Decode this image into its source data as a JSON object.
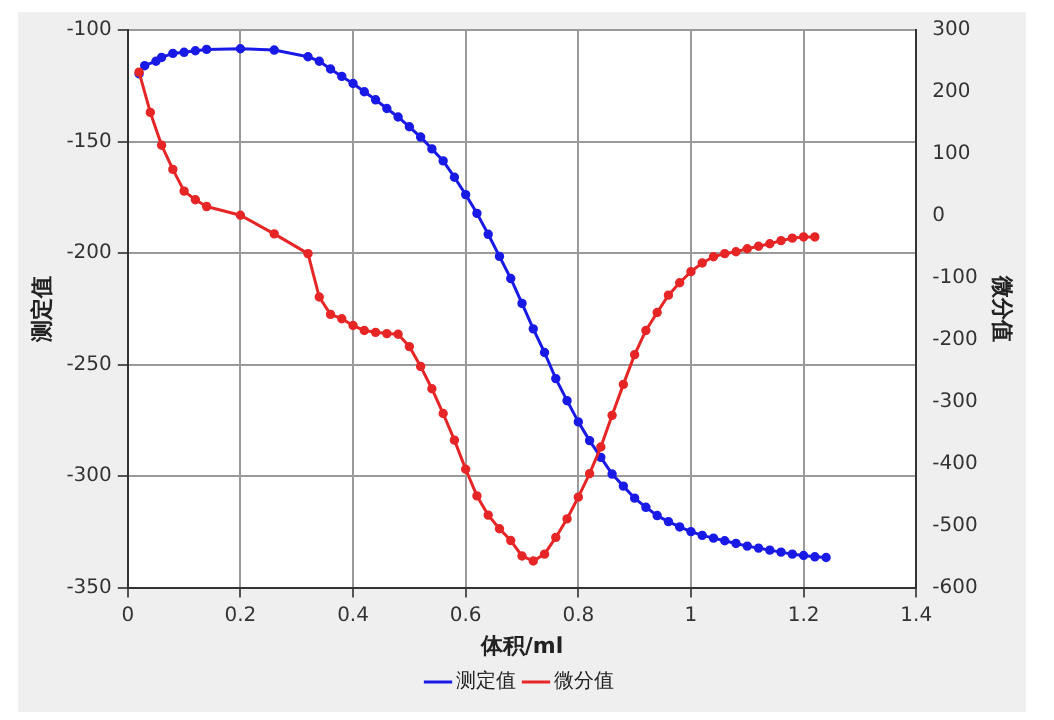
{
  "chart_data": {
    "type": "line",
    "xlabel": "体积/ml",
    "ylabel": "测定值",
    "y2label": "微分值",
    "xlim": [
      0,
      1.4
    ],
    "xticks": [
      0,
      0.2,
      0.4,
      0.6,
      0.8,
      1,
      1.2,
      1.4
    ],
    "ylim": [
      -350,
      -100
    ],
    "yticks": [
      -350,
      -300,
      -250,
      -200,
      -150,
      -100
    ],
    "y2lim": [
      -600,
      300
    ],
    "y2ticks": [
      -600,
      -500,
      -400,
      -300,
      -200,
      -100,
      0,
      100,
      200,
      300
    ],
    "grid": true,
    "legend": "bottom",
    "marker": "circle",
    "line_style": "solid",
    "series": [
      {
        "name": "测定值",
        "color": "#1a1ae6",
        "x": [
          0.02,
          0.03,
          0.05,
          0.06,
          0.08,
          0.1,
          0.12,
          0.14,
          0.2,
          0.26,
          0.32,
          0.34,
          0.36,
          0.38,
          0.4,
          0.42,
          0.44,
          0.46,
          0.48,
          0.5,
          0.52,
          0.54,
          0.56,
          0.58,
          0.6,
          0.62,
          0.64,
          0.66,
          0.68,
          0.7,
          0.72,
          0.74,
          0.76,
          0.78,
          0.8,
          0.82,
          0.84,
          0.86,
          0.88,
          0.9,
          0.92,
          0.94,
          0.96,
          0.98,
          1,
          1.02,
          1.04,
          1.06,
          1.08,
          1.1,
          1.12,
          1.14,
          1.16,
          1.18,
          1.2,
          1.22,
          1.24
        ],
        "values": [
          -119.6,
          -116,
          -114,
          -112.3,
          -110.5,
          -110,
          -109.3,
          -108.7,
          -108.4,
          -109,
          -112,
          -114,
          -117.5,
          -120.8,
          -124,
          -127.7,
          -131.3,
          -135.2,
          -139,
          -143.4,
          -148,
          -153.3,
          -158.7,
          -166,
          -173.8,
          -182.2,
          -191.6,
          -201.5,
          -211.4,
          -222.6,
          -234,
          -244.6,
          -256.3,
          -266.2,
          -275.7,
          -284.1,
          -291.6,
          -299.1,
          -304.5,
          -309.9,
          -314,
          -317.7,
          -320.4,
          -322.8,
          -324.9,
          -326.6,
          -327.8,
          -329,
          -330.2,
          -331.4,
          -332.3,
          -333.2,
          -334.1,
          -335,
          -335.6,
          -336.2,
          -336.5
        ]
      },
      {
        "name": "微分值",
        "color": "#e62626",
        "axis": "y2",
        "x": [
          0.02,
          0.04,
          0.06,
          0.08,
          0.1,
          0.12,
          0.14,
          0.2,
          0.26,
          0.32,
          0.34,
          0.36,
          0.38,
          0.4,
          0.42,
          0.44,
          0.46,
          0.48,
          0.5,
          0.52,
          0.54,
          0.56,
          0.58,
          0.6,
          0.62,
          0.64,
          0.66,
          0.68,
          0.7,
          0.72,
          0.74,
          0.76,
          0.78,
          0.8,
          0.82,
          0.84,
          0.86,
          0.88,
          0.9,
          0.92,
          0.94,
          0.96,
          0.98,
          1,
          1.02,
          1.04,
          1.06,
          1.08,
          1.1,
          1.12,
          1.14,
          1.16,
          1.18,
          1.2,
          1.22
        ],
        "values": [
          232,
          167,
          114,
          75,
          40,
          26,
          15,
          1,
          -29,
          -61,
          -131,
          -159,
          -166,
          -177,
          -185,
          -188,
          -190,
          -191,
          -211,
          -243,
          -279,
          -319,
          -362,
          -409,
          -452,
          -483,
          -505,
          -524,
          -549,
          -557,
          -546,
          -519,
          -489,
          -454,
          -416,
          -373,
          -322,
          -272,
          -224,
          -185,
          -156,
          -128,
          -108,
          -90,
          -76,
          -66,
          -61,
          -58,
          -53,
          -49,
          -45,
          -40,
          -36,
          -34,
          -34
        ]
      }
    ]
  }
}
